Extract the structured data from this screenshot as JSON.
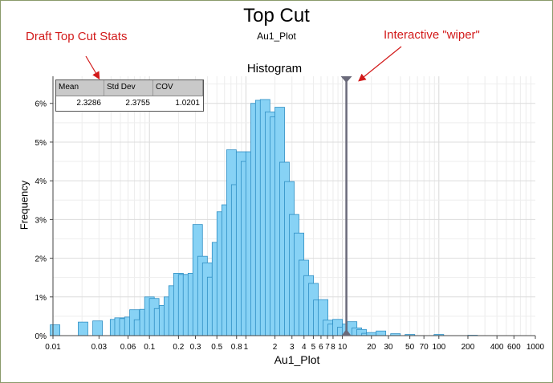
{
  "window_title": "Top Cut",
  "subtitle": "Au1_Plot",
  "annotations": {
    "stats_note": "Draft Top Cut Stats",
    "wiper_note": "Interactive \"wiper\""
  },
  "stats_table": {
    "headers": [
      "Mean",
      "Std Dev",
      "COV"
    ],
    "values": [
      "2.3286",
      "2.3755",
      "1.0201"
    ]
  },
  "colors": {
    "bar_fill": "#87d2f5",
    "bar_stroke": "#2f8fc4",
    "wiper": "#6a6a7a",
    "annotation": "#d21a1a"
  },
  "wiper_value": 11,
  "chart_data": {
    "type": "bar",
    "title": "Histogram",
    "xlabel": "Au1_Plot",
    "ylabel": "Frequency",
    "x_scale": "log",
    "xlim": [
      0.01,
      1000
    ],
    "ylim": [
      0,
      6.7
    ],
    "y_unit": "%",
    "grid": true,
    "x_tick_labels": [
      "0.01",
      "0.03",
      "0.06",
      "0.1",
      "0.2",
      "0.3",
      "0.5",
      "0.8",
      "1",
      "2",
      "3",
      "4",
      "5",
      "6",
      "7",
      "8",
      "10",
      "20",
      "30",
      "50",
      "70",
      "100",
      "200",
      "400",
      "600",
      "1000"
    ],
    "y_tick_labels": [
      "0%",
      "1%",
      "2%",
      "3%",
      "4%",
      "5%",
      "6%"
    ],
    "bars": [
      {
        "x": 0.0105,
        "y": 0.28
      },
      {
        "x": 0.0205,
        "y": 0.35
      },
      {
        "x": 0.029,
        "y": 0.38
      },
      {
        "x": 0.044,
        "y": 0.42
      },
      {
        "x": 0.049,
        "y": 0.46
      },
      {
        "x": 0.055,
        "y": 0.44
      },
      {
        "x": 0.062,
        "y": 0.48
      },
      {
        "x": 0.07,
        "y": 0.67
      },
      {
        "x": 0.078,
        "y": 0.41
      },
      {
        "x": 0.089,
        "y": 0.68
      },
      {
        "x": 0.1,
        "y": 1.0
      },
      {
        "x": 0.112,
        "y": 0.96
      },
      {
        "x": 0.126,
        "y": 0.7
      },
      {
        "x": 0.142,
        "y": 0.78
      },
      {
        "x": 0.159,
        "y": 1.0
      },
      {
        "x": 0.178,
        "y": 1.29
      },
      {
        "x": 0.2,
        "y": 1.61
      },
      {
        "x": 0.224,
        "y": 1.58
      },
      {
        "x": 0.251,
        "y": 1.58
      },
      {
        "x": 0.282,
        "y": 1.61
      },
      {
        "x": 0.316,
        "y": 2.87
      },
      {
        "x": 0.355,
        "y": 2.05
      },
      {
        "x": 0.398,
        "y": 1.88
      },
      {
        "x": 0.447,
        "y": 1.51
      },
      {
        "x": 0.501,
        "y": 2.41
      },
      {
        "x": 0.562,
        "y": 3.2
      },
      {
        "x": 0.631,
        "y": 3.38
      },
      {
        "x": 0.708,
        "y": 4.8
      },
      {
        "x": 0.794,
        "y": 3.9
      },
      {
        "x": 0.891,
        "y": 4.75
      },
      {
        "x": 1.0,
        "y": 4.5
      },
      {
        "x": 1.12,
        "y": 4.75
      },
      {
        "x": 1.26,
        "y": 6.0
      },
      {
        "x": 1.41,
        "y": 6.08
      },
      {
        "x": 1.58,
        "y": 6.1
      },
      {
        "x": 1.78,
        "y": 5.78
      },
      {
        "x": 2.0,
        "y": 5.65
      },
      {
        "x": 2.24,
        "y": 5.9
      },
      {
        "x": 2.51,
        "y": 4.48
      },
      {
        "x": 2.82,
        "y": 3.98
      },
      {
        "x": 3.16,
        "y": 3.13
      },
      {
        "x": 3.55,
        "y": 2.65
      },
      {
        "x": 3.98,
        "y": 1.95
      },
      {
        "x": 4.47,
        "y": 1.55
      },
      {
        "x": 5.01,
        "y": 1.35
      },
      {
        "x": 5.62,
        "y": 0.92
      },
      {
        "x": 6.31,
        "y": 0.93
      },
      {
        "x": 7.08,
        "y": 0.4
      },
      {
        "x": 7.94,
        "y": 0.3
      },
      {
        "x": 8.91,
        "y": 0.42
      },
      {
        "x": 10.0,
        "y": 0.22
      },
      {
        "x": 11.2,
        "y": 0.3
      },
      {
        "x": 12.6,
        "y": 0.36
      },
      {
        "x": 14.1,
        "y": 0.2
      },
      {
        "x": 15.8,
        "y": 0.16
      },
      {
        "x": 17.8,
        "y": 0.06
      },
      {
        "x": 20.0,
        "y": 0.08
      },
      {
        "x": 25.1,
        "y": 0.12
      },
      {
        "x": 35.5,
        "y": 0.05
      },
      {
        "x": 50.1,
        "y": 0.03
      },
      {
        "x": 100,
        "y": 0.03
      },
      {
        "x": 224,
        "y": 0.01
      }
    ]
  }
}
